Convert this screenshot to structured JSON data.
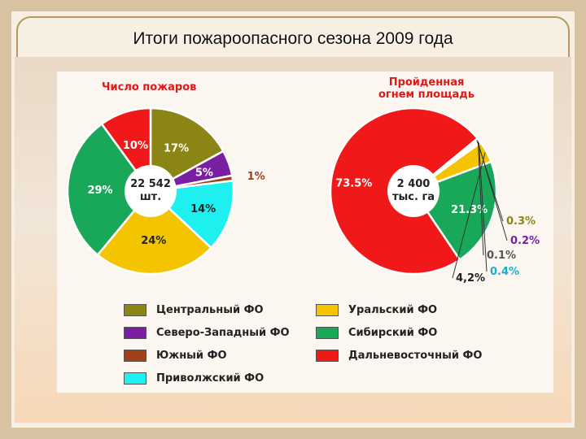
{
  "page": {
    "title": "Итоги пожароопасного сезона 2009 года"
  },
  "colors": {
    "central": "#8b8516",
    "northwest": "#7b1fa2",
    "south": "#a0411c",
    "volga": "#1ef0f0",
    "ural": "#f5c400",
    "siberia": "#19a85a",
    "fareast": "#f01818",
    "title_red": "#e01818"
  },
  "chart_data": [
    {
      "type": "pie",
      "title": "Число пожаров",
      "center_label": [
        "22 542",
        "шт."
      ],
      "slices": [
        {
          "name": "Центральный ФО",
          "value": 17,
          "label": "17%",
          "color": "#8b8516"
        },
        {
          "name": "Северо-Западный ФО",
          "value": 5,
          "label": "5%",
          "color": "#7b1fa2"
        },
        {
          "name": "Южный ФО",
          "value": 1,
          "label": "1%",
          "color": "#a0411c"
        },
        {
          "name": "Приволжский ФО",
          "value": 14,
          "label": "14%",
          "color": "#1ef0f0"
        },
        {
          "name": "Уральский ФО",
          "value": 24,
          "label": "24%",
          "color": "#f5c400"
        },
        {
          "name": "Сибирский ФО",
          "value": 29,
          "label": "29%",
          "color": "#19a85a"
        },
        {
          "name": "Дальневосточный ФО",
          "value": 10,
          "label": "10%",
          "color": "#f01818"
        }
      ]
    },
    {
      "type": "pie",
      "title": [
        "Пройденная",
        "огнем площадь"
      ],
      "center_label": [
        "2 400",
        "тыс. га"
      ],
      "slices": [
        {
          "name": "Дальневосточный ФО",
          "value": 73.5,
          "label": "73.5%",
          "color": "#f01818"
        },
        {
          "name": "Центральный ФО",
          "value": 0.3,
          "label": "0.3%",
          "color": "#8b8516"
        },
        {
          "name": "Северо-Западный ФО",
          "value": 0.2,
          "label": "0.2%",
          "color": "#7b1fa2"
        },
        {
          "name": "Южный ФО",
          "value": 0.1,
          "label": "0.1%",
          "color": "#a0411c"
        },
        {
          "name": "Приволжский ФО",
          "value": 0.4,
          "label": "0.4%",
          "color": "#1ef0f0"
        },
        {
          "name": "Уральский ФО",
          "value": 4.2,
          "label": "4,2%",
          "color": "#f5c400"
        },
        {
          "name": "Сибирский ФО",
          "value": 21.3,
          "label": "21.3%",
          "color": "#19a85a"
        }
      ]
    }
  ],
  "legend": [
    {
      "label": "Центральный ФО",
      "color": "#8b8516"
    },
    {
      "label": "Уральский ФО",
      "color": "#f5c400"
    },
    {
      "label": "Северо-Западный ФО",
      "color": "#7b1fa2"
    },
    {
      "label": "Сибирский ФО",
      "color": "#19a85a"
    },
    {
      "label": "Южный ФО",
      "color": "#a0411c"
    },
    {
      "label": "Дальневосточный ФО",
      "color": "#f01818"
    },
    {
      "label": "Приволжский ФО",
      "color": "#1ef0f0"
    }
  ]
}
